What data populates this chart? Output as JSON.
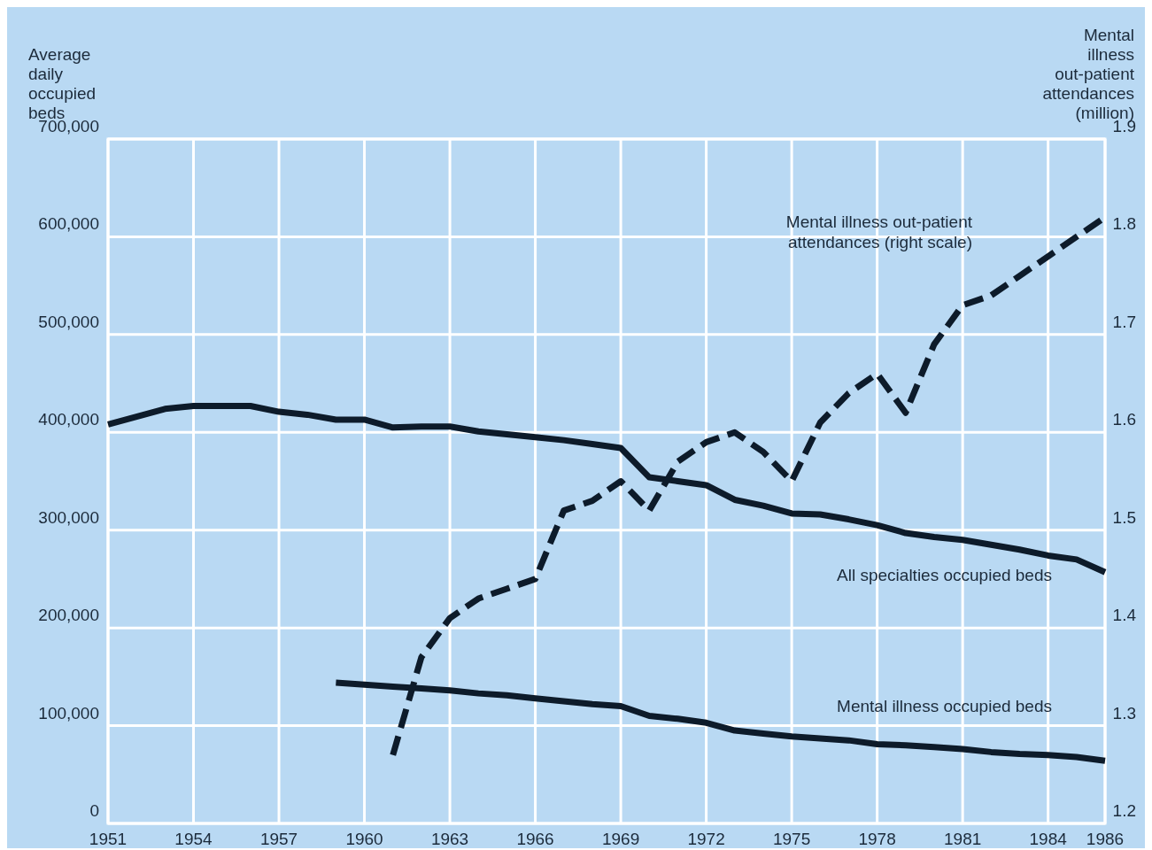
{
  "chart_data": {
    "type": "line",
    "ylabel": "Average daily occupied beds",
    "y2label": "Mental illness out-patient attendances (million)",
    "xlim": [
      1951,
      1986
    ],
    "xticks": [
      1951,
      1954,
      1957,
      1960,
      1963,
      1966,
      1969,
      1972,
      1975,
      1978,
      1981,
      1984,
      1986
    ],
    "ylim": [
      0,
      700000
    ],
    "yticks": [
      0,
      {
        "value": 100000,
        "label": "100,000"
      },
      {
        "value": 200000,
        "label": "200,000"
      },
      {
        "value": 300000,
        "label": "300,000"
      },
      {
        "value": 400000,
        "label": "400,000"
      },
      {
        "value": 500000,
        "label": "500,000"
      },
      {
        "value": 600000,
        "label": "600,000"
      },
      {
        "value": 700000,
        "label": "700,000"
      }
    ],
    "y2lim": [
      1.2,
      1.9
    ],
    "y2ticks": [
      1.2,
      1.3,
      1.4,
      1.5,
      1.6,
      1.7,
      1.8,
      1.9
    ],
    "grid": true,
    "legend": false,
    "marker": "none",
    "series": [
      {
        "name": "All specialties occupied beds",
        "color": "#0d1b2a",
        "line_style": "solid",
        "x": [
          1951,
          1953,
          1954,
          1955,
          1956,
          1957,
          1958,
          1959,
          1960,
          1961,
          1962,
          1963,
          1964,
          1965,
          1966,
          1967,
          1968,
          1969,
          1970,
          1971,
          1972,
          1973,
          1974,
          1975,
          1976,
          1977,
          1978,
          1979,
          1980,
          1981,
          1982,
          1983,
          1984,
          1985,
          1986
        ],
        "values": [
          408000,
          424000,
          427000,
          427000,
          427000,
          421000,
          418000,
          413000,
          413000,
          405000,
          406000,
          406000,
          401000,
          398000,
          395000,
          392000,
          388000,
          384000,
          354000,
          350000,
          346000,
          331000,
          325000,
          317000,
          316000,
          311000,
          305000,
          297000,
          293000,
          290000,
          285000,
          280000,
          274000,
          270000,
          257000
        ]
      },
      {
        "name": "Mental illness occupied beds",
        "color": "#0d1b2a",
        "line_style": "solid",
        "x": [
          1959,
          1960,
          1961,
          1962,
          1963,
          1964,
          1965,
          1966,
          1967,
          1968,
          1969,
          1970,
          1971,
          1972,
          1973,
          1974,
          1975,
          1976,
          1977,
          1978,
          1979,
          1980,
          1981,
          1982,
          1983,
          1984,
          1985,
          1986
        ],
        "values": [
          144000,
          142000,
          140000,
          138000,
          136000,
          133000,
          131000,
          128000,
          125000,
          122000,
          120000,
          110000,
          107000,
          103000,
          95000,
          92000,
          89000,
          87000,
          85000,
          81000,
          80000,
          78000,
          76000,
          73000,
          71000,
          70000,
          68000,
          64000
        ]
      },
      {
        "name": "Mental illness out-patient attendances (right scale)",
        "color": "#0d1b2a",
        "line_style": "dashed",
        "axis": "y2",
        "x": [
          1961,
          1962,
          1963,
          1964,
          1965,
          1966,
          1967,
          1968,
          1969,
          1970,
          1971,
          1972,
          1973,
          1974,
          1975,
          1976,
          1977,
          1978,
          1979,
          1980,
          1981,
          1982,
          1983,
          1984,
          1985,
          1986
        ],
        "values": [
          1.27,
          1.37,
          1.41,
          1.43,
          1.44,
          1.45,
          1.52,
          1.53,
          1.55,
          1.52,
          1.57,
          1.59,
          1.6,
          1.58,
          1.55,
          1.61,
          1.64,
          1.66,
          1.62,
          1.69,
          1.73,
          1.74,
          1.76,
          1.78,
          1.8,
          1.82
        ]
      }
    ]
  }
}
